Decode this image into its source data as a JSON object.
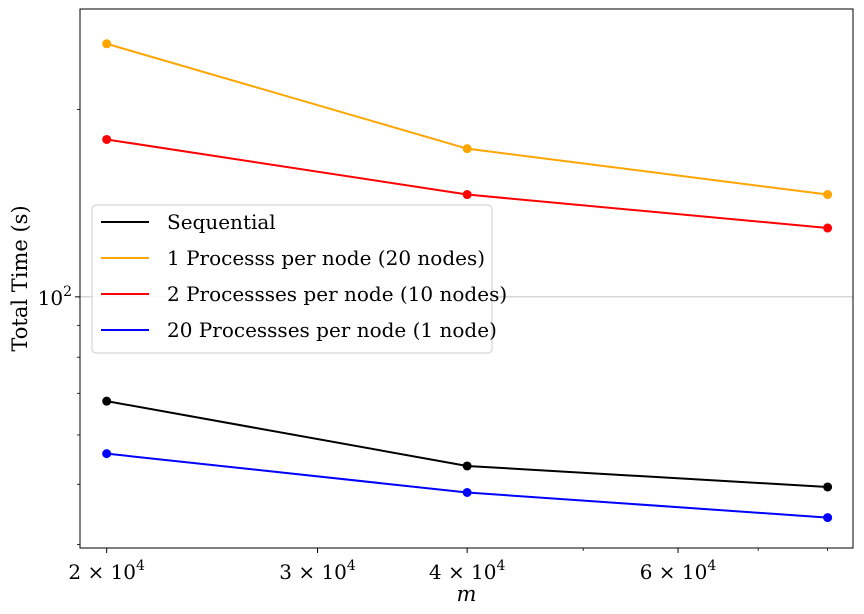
{
  "chart_data": {
    "type": "line",
    "title": "",
    "xlabel": "m",
    "ylabel": "Total Time (s)",
    "xscale": "log",
    "yscale": "log",
    "xlim": [
      19000,
      84000
    ],
    "ylim": [
      39.5,
      290
    ],
    "grid": "horizontal major only",
    "legend_position": "center-left",
    "x": [
      20000,
      40000,
      80000
    ],
    "x_ticks": [
      {
        "value": 20000,
        "mantissa": "2",
        "exponent": "4"
      },
      {
        "value": 30000,
        "mantissa": "3",
        "exponent": "4"
      },
      {
        "value": 40000,
        "mantissa": "4",
        "exponent": "4"
      },
      {
        "value": 60000,
        "mantissa": "6",
        "exponent": "4"
      }
    ],
    "y_ticks": [
      {
        "value": 100,
        "base": "10",
        "exponent": "2"
      }
    ],
    "series": [
      {
        "name": "Sequential",
        "color": "#000000",
        "values": [
          68,
          53.5,
          49.5
        ]
      },
      {
        "name": "1 Processs per node (20 nodes)",
        "color": "#FFA500",
        "values": [
          255,
          173,
          146
        ]
      },
      {
        "name": "2 Processses per node (10 nodes)",
        "color": "#FF0000",
        "values": [
          179,
          146,
          129
        ]
      },
      {
        "name": "20 Processses per node (1 node)",
        "color": "#0000FF",
        "values": [
          56,
          48.5,
          44.2
        ]
      }
    ]
  }
}
